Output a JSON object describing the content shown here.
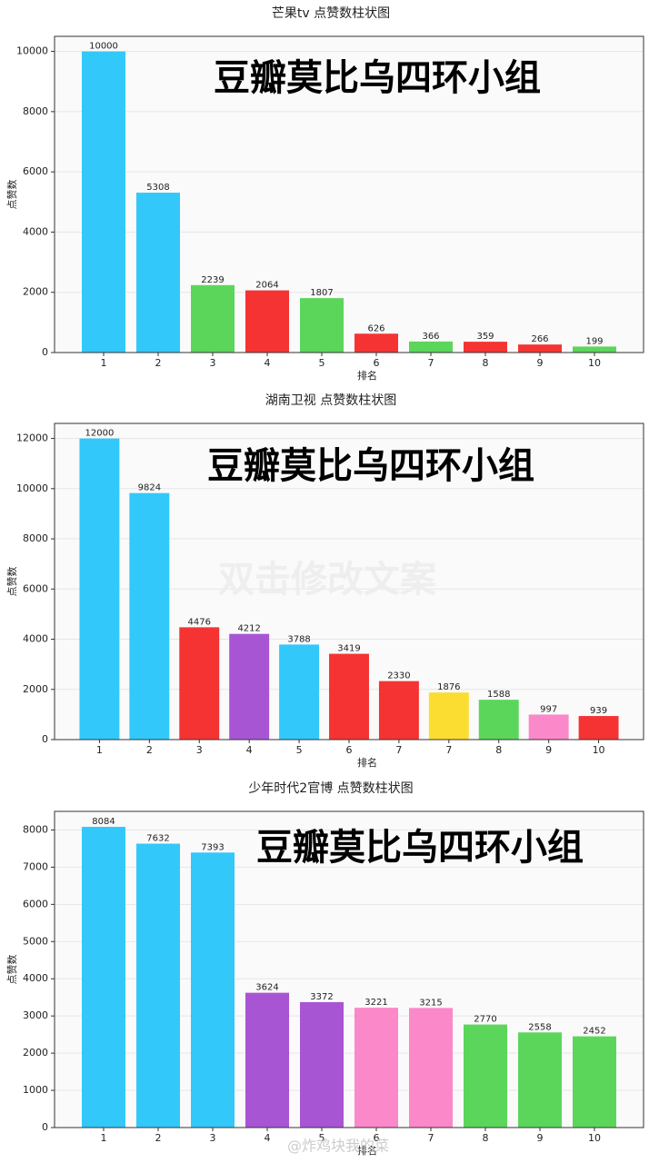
{
  "chart_data": [
    {
      "type": "bar",
      "title": "芒果tv 点赞数柱状图",
      "xlabel": "排名",
      "ylabel": "点赞数",
      "annotation": "豆瓣莫比乌四环小组",
      "categories": [
        "1",
        "2",
        "3",
        "4",
        "5",
        "6",
        "7",
        "8",
        "9",
        "10"
      ],
      "values": [
        10000,
        5308,
        2239,
        2064,
        1807,
        626,
        366,
        359,
        266,
        199
      ],
      "colors": [
        "#33c8fa",
        "#33c8fa",
        "#5bd65b",
        "#f53333",
        "#5bd65b",
        "#f53333",
        "#5bd65b",
        "#f53333",
        "#f53333",
        "#5bd65b"
      ],
      "ylim": [
        0,
        10500
      ],
      "yticks": [
        0,
        2000,
        4000,
        6000,
        8000,
        10000
      ],
      "grid": true
    },
    {
      "type": "bar",
      "title": "湖南卫视 点赞数柱状图",
      "xlabel": "排名",
      "ylabel": "点赞数",
      "annotation": "豆瓣莫比乌四环小组",
      "watermark": "双击修改文案",
      "categories": [
        "1",
        "2",
        "3",
        "4",
        "5",
        "6",
        "7",
        "7",
        "8",
        "9",
        "10"
      ],
      "values": [
        12000,
        9824,
        4476,
        4212,
        3788,
        3419,
        2330,
        1876,
        1588,
        997,
        939
      ],
      "colors": [
        "#33c8fa",
        "#33c8fa",
        "#f53333",
        "#a855d4",
        "#33c8fa",
        "#f53333",
        "#f53333",
        "#fadd30",
        "#5bd65b",
        "#fb88c8",
        "#f53333"
      ],
      "ylim": [
        0,
        12600
      ],
      "yticks": [
        0,
        2000,
        4000,
        6000,
        8000,
        10000,
        12000
      ],
      "grid": true
    },
    {
      "type": "bar",
      "title": "少年时代2官博 点赞数柱状图",
      "xlabel": "排名",
      "ylabel": "点赞数",
      "annotation": "豆瓣莫比乌四环小组",
      "watermark": "@炸鸡块我的菜",
      "categories": [
        "1",
        "2",
        "3",
        "4",
        "5",
        "6",
        "7",
        "8",
        "9",
        "10"
      ],
      "values": [
        8084,
        7632,
        7393,
        3624,
        3372,
        3221,
        3215,
        2770,
        2558,
        2452
      ],
      "colors": [
        "#33c8fa",
        "#33c8fa",
        "#33c8fa",
        "#a855d4",
        "#a855d4",
        "#fb88c8",
        "#fb88c8",
        "#5bd65b",
        "#5bd65b",
        "#5bd65b"
      ],
      "ylim": [
        0,
        8500
      ],
      "yticks": [
        0,
        1000,
        2000,
        3000,
        4000,
        5000,
        6000,
        7000,
        8000
      ],
      "grid": true
    }
  ]
}
